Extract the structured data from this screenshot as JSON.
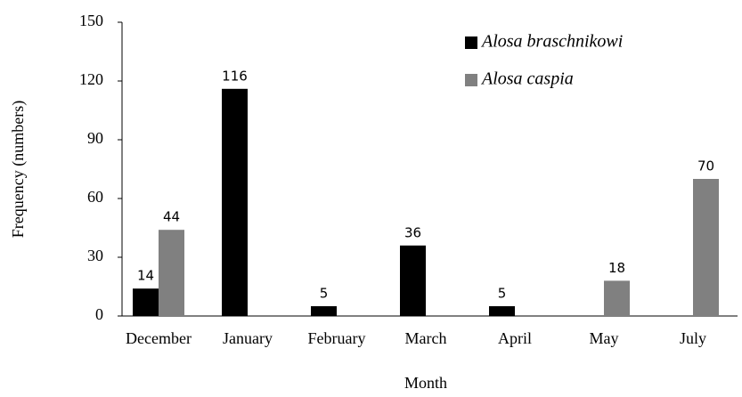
{
  "chart_data": {
    "type": "bar",
    "x_label": "Month",
    "y_label": "Frequency (numbers)",
    "categories": [
      "December",
      "January",
      "February",
      "March",
      "April",
      "May",
      "July"
    ],
    "series": [
      {
        "name": "Alosa braschnikowi",
        "color": "#000000",
        "values": [
          14,
          116,
          5,
          36,
          5,
          null,
          null
        ]
      },
      {
        "name": "Alosa caspia",
        "color": "#808080",
        "values": [
          44,
          null,
          null,
          null,
          null,
          18,
          70
        ]
      }
    ],
    "ylim": [
      0,
      150
    ],
    "yticks": [
      0,
      30,
      60,
      90,
      120,
      150
    ],
    "grid": false,
    "legend": "upper right"
  }
}
